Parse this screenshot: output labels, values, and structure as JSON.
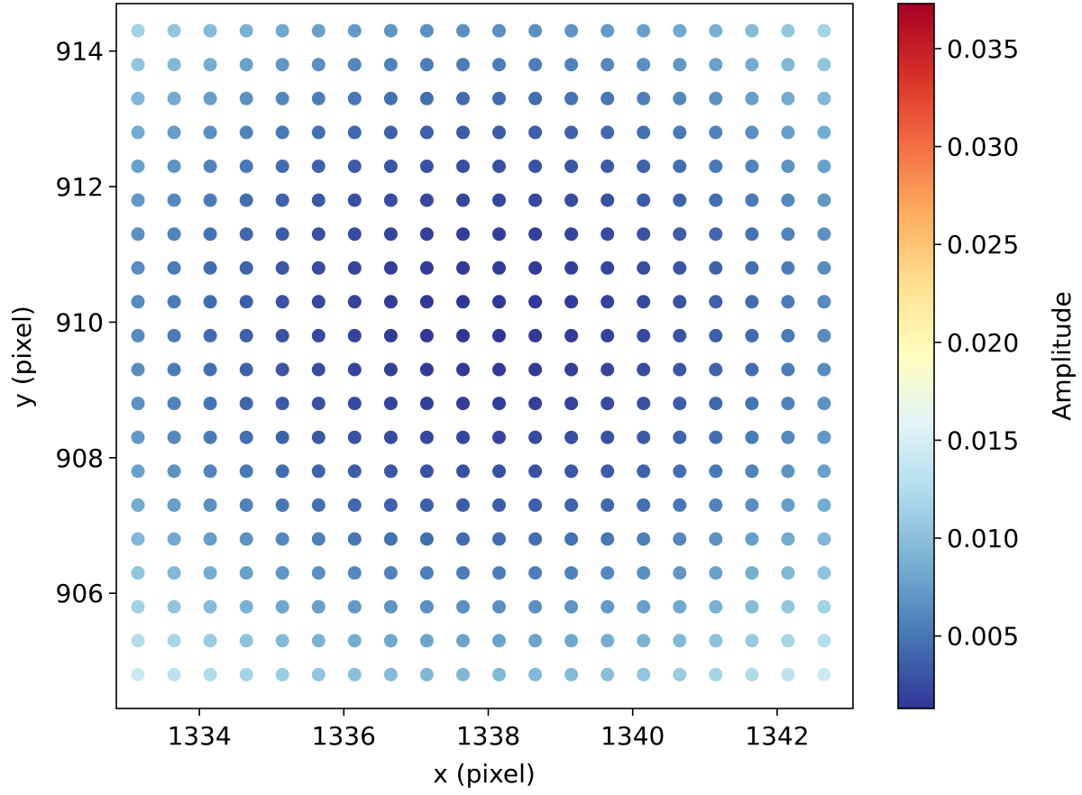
{
  "chart_data": {
    "type": "scatter",
    "title": "",
    "xlabel": "x (pixel)",
    "ylabel": "y (pixel)",
    "xlim": [
      1332.85,
      1343.05
    ],
    "ylim": [
      904.3,
      914.7
    ],
    "xticks": [
      1334,
      1336,
      1338,
      1340,
      1342
    ],
    "yticks": [
      906,
      908,
      910,
      912,
      914
    ],
    "x_values": [
      1333.15,
      1333.65,
      1334.15,
      1334.65,
      1335.15,
      1335.65,
      1336.15,
      1336.65,
      1337.15,
      1337.65,
      1338.15,
      1338.65,
      1339.15,
      1339.65,
      1340.15,
      1340.65,
      1341.15,
      1341.65,
      1342.15,
      1342.65
    ],
    "y_values": [
      914.3,
      913.8,
      913.3,
      912.8,
      912.3,
      911.8,
      911.3,
      910.8,
      910.3,
      909.8,
      909.3,
      908.8,
      908.3,
      907.8,
      907.3,
      906.8,
      906.3,
      905.8,
      905.3,
      904.8
    ],
    "amplitude_model": {
      "description_values": "amplitude rises radially from a minimum near the grid center",
      "center_x": 1337.9,
      "center_y": 910.05,
      "min_amplitude": 0.0013,
      "quad_coef_x": 0.00022,
      "quad_coef_y": 0.00029
    },
    "grid": false,
    "legend": "none",
    "colorbar": {
      "label": "Amplitude",
      "colormap": "RdYlBu_r",
      "range": [
        0.0013,
        0.0373
      ],
      "ticks": [
        0.005,
        0.01,
        0.015,
        0.02,
        0.025,
        0.03,
        0.035
      ],
      "tick_labels": [
        "0.005",
        "0.010",
        "0.015",
        "0.020",
        "0.025",
        "0.030",
        "0.035"
      ]
    }
  }
}
